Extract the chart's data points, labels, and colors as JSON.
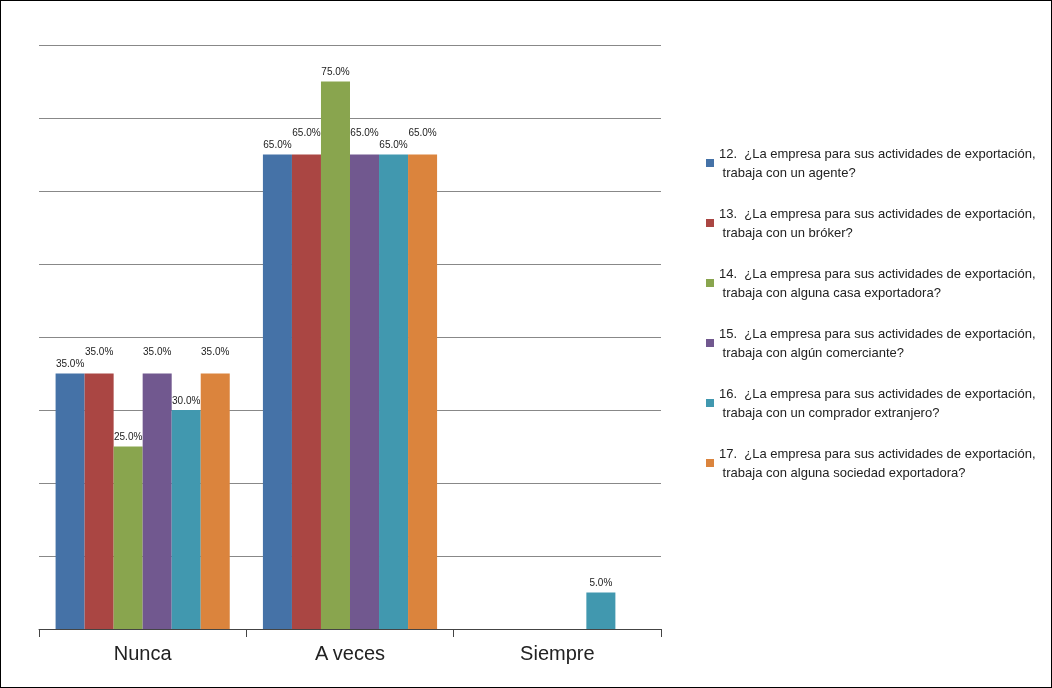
{
  "chart_data": {
    "type": "bar",
    "categories": [
      "Nunca",
      "A veces",
      "Siempre"
    ],
    "series": [
      {
        "name": "12.  ¿La empresa para sus actividades de exportación, trabaja con un agente?",
        "color": "#4572a7",
        "values": [
          35,
          65,
          null
        ],
        "value_labels": [
          "35.0%",
          "65.0%",
          null
        ]
      },
      {
        "name": "13.  ¿La empresa para sus actividades de exportación, trabaja con un bróker?",
        "color": "#aa4643",
        "values": [
          35,
          65,
          null
        ],
        "value_labels": [
          "35.0%",
          "65.0%",
          null
        ]
      },
      {
        "name": "14.  ¿La empresa para sus actividades de exportación, trabaja con alguna casa exportadora?",
        "color": "#89a54e",
        "values": [
          25,
          75,
          null
        ],
        "value_labels": [
          "25.0%",
          "75.0%",
          null
        ]
      },
      {
        "name": "15.  ¿La empresa para sus actividades de exportación, trabaja con algún comerciante?",
        "color": "#71588f",
        "values": [
          35,
          65,
          null
        ],
        "value_labels": [
          "35.0%",
          "65.0%",
          null
        ]
      },
      {
        "name": "16.  ¿La empresa para sus actividades de exportación, trabaja con un comprador extranjero?",
        "color": "#4198af",
        "values": [
          30,
          65,
          5
        ],
        "value_labels": [
          "30.0%",
          "65.0%",
          "5.0%"
        ]
      },
      {
        "name": "17.  ¿La empresa para sus actividades de exportación, trabaja con alguna sociedad exportadora?",
        "color": "#db843d",
        "values": [
          35,
          65,
          null
        ],
        "value_labels": [
          "35.0%",
          "65.0%",
          null
        ]
      }
    ],
    "ylim": [
      0,
      80
    ],
    "yticks": [
      {
        "value": 0,
        "label": null
      },
      {
        "value": 10,
        "label": null
      },
      {
        "value": 20,
        "label": null
      },
      {
        "value": 30,
        "label": null
      },
      {
        "value": 40,
        "label": null
      },
      {
        "value": 50,
        "label": null
      },
      {
        "value": 60,
        "label": null
      },
      {
        "value": 70,
        "label": null
      },
      {
        "value": 80,
        "label": null
      }
    ],
    "grid": "y",
    "legend": "right",
    "tick_labels": "x"
  }
}
